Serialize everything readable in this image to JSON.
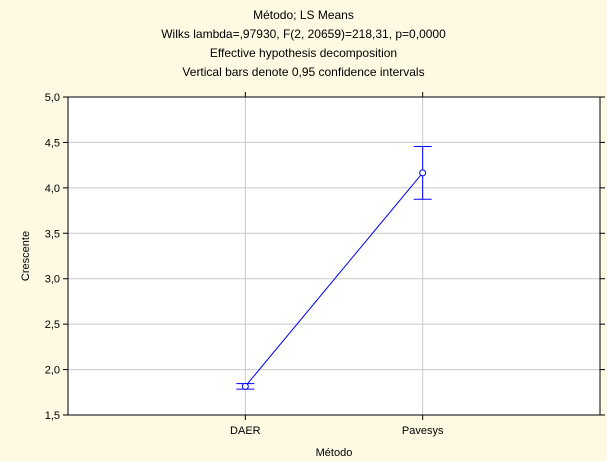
{
  "chart_data": {
    "type": "line",
    "title_lines": [
      "Método; LS Means",
      "Wilks lambda=,97930, F(2, 20659)=218,31, p=0,0000",
      "Effective hypothesis decomposition",
      "Vertical bars denote 0,95 confidence intervals"
    ],
    "xlabel": "Método",
    "ylabel": "Crescente",
    "categories": [
      "DAER",
      "Pavesys"
    ],
    "series": [
      {
        "values": [
          1.815,
          4.165
        ],
        "ci_lower": [
          1.785,
          3.875
        ],
        "ci_upper": [
          1.845,
          4.455
        ]
      }
    ],
    "ylim": [
      1.5,
      5.0
    ],
    "yticks": [
      1.5,
      2.0,
      2.5,
      3.0,
      3.5,
      4.0,
      4.5,
      5.0
    ],
    "ytick_labels": [
      "1,5",
      "2,0",
      "2,5",
      "3,0",
      "3,5",
      "4,0",
      "4,5",
      "5,0"
    ],
    "grid": true,
    "colors": {
      "background": "#fdf9e2",
      "plot_area": "#ffffff",
      "series": "#0000ff",
      "grid": "#c8c8c8"
    }
  }
}
